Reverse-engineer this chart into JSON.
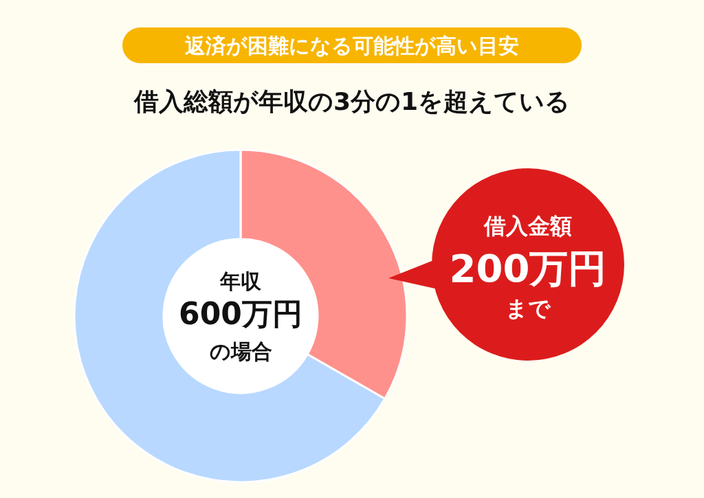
{
  "chart_data": {
    "type": "donut",
    "title": "返済が困難になる可能性が高い目安",
    "subtitle": "借入総額が年収の3分の1を超えている",
    "categories": [
      null,
      null
    ],
    "values": [
      33.3,
      66.7
    ],
    "colors": [
      "#ff918c",
      "#b8d8ff"
    ],
    "annotations": [
      "年収",
      "600万円",
      "の場合",
      "借入金額",
      "200万円",
      "まで"
    ]
  }
}
